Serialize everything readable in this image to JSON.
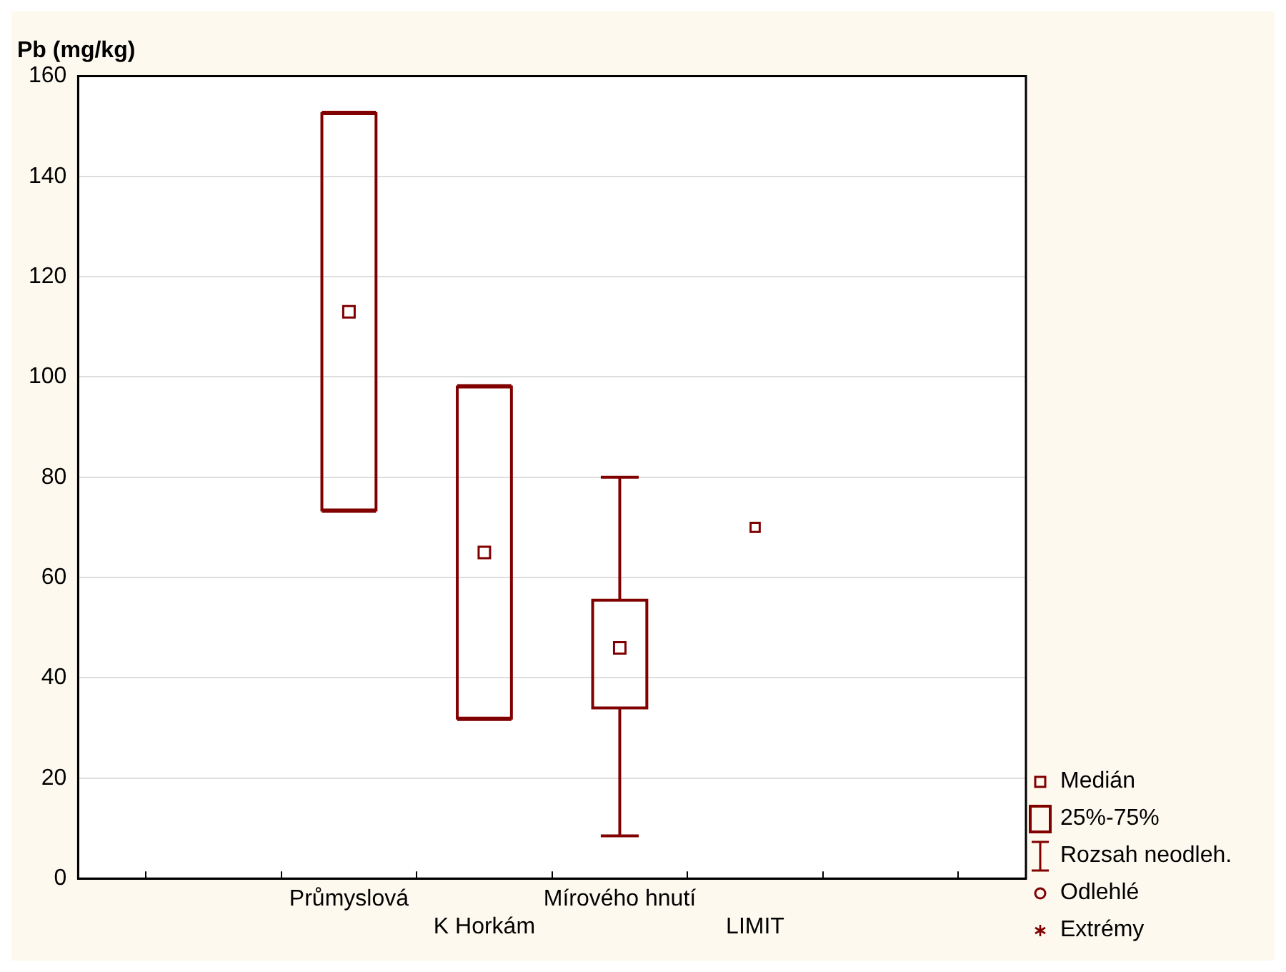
{
  "chart_data": {
    "type": "box",
    "ylabel": "Pb (mg/kg)",
    "categories": [
      null,
      null,
      "Průmyslová",
      "K Horkám",
      "Mírového hnutí",
      "LIMIT",
      null,
      null
    ],
    "boxes": [
      null,
      null,
      {
        "low": 73.5,
        "q1": 73.5,
        "median": 113,
        "q3": 152.5,
        "high": 152.5
      },
      {
        "low": 32,
        "q1": 32,
        "median": 65,
        "q3": 98,
        "high": 98
      },
      {
        "low": 8.5,
        "q1": 34,
        "median": 46,
        "q3": 55.5,
        "high": 80
      },
      null,
      null,
      null
    ],
    "series": [
      {
        "type": "scatter",
        "x": [
          "LIMIT"
        ],
        "values": [
          70
        ],
        "color": "#800000"
      }
    ],
    "marker": "square",
    "color": "#800000",
    "ylim": [
      0,
      160
    ],
    "yticks": [
      0,
      20,
      40,
      60,
      80,
      100,
      120,
      140,
      160
    ],
    "grid": "y",
    "annotations": [
      "Medián",
      "25%-75%",
      "Rozsah neodleh.",
      "Odlehlé",
      "Extrémy"
    ]
  }
}
